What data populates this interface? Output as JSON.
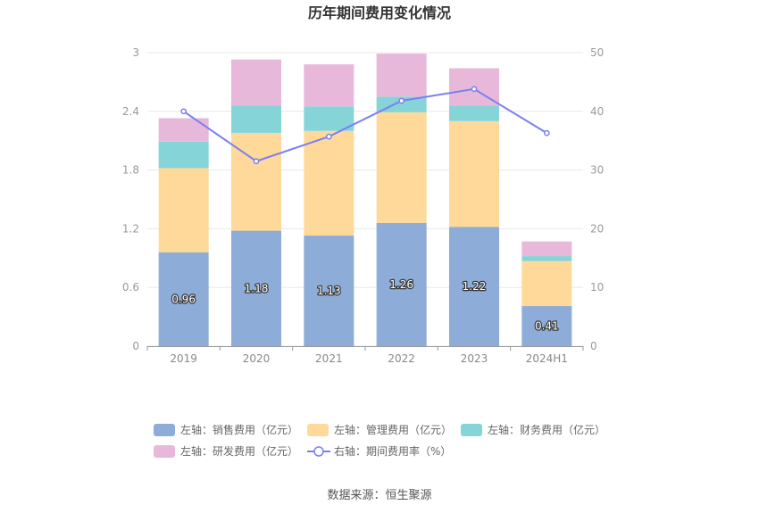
{
  "chart_data": {
    "type": "bar",
    "title": "历年期间费用变化情况",
    "categories": [
      "2019",
      "2020",
      "2021",
      "2022",
      "2023",
      "2024H1"
    ],
    "left_axis": {
      "min": 0,
      "max": 3,
      "ticks": [
        "0",
        "0.6",
        "1.2",
        "1.8",
        "2.4",
        "3"
      ]
    },
    "right_axis": {
      "min": 0,
      "max": 50,
      "ticks": [
        "0",
        "10",
        "20",
        "30",
        "40",
        "50"
      ]
    },
    "series": [
      {
        "name": "左轴：销售费用（亿元）",
        "color": "#8dacd8",
        "axis": "left",
        "stacked": true,
        "values": [
          0.96,
          1.18,
          1.13,
          1.26,
          1.22,
          0.41
        ],
        "labels": [
          "0.96",
          "1.18",
          "1.13",
          "1.26",
          "1.22",
          "0.41"
        ]
      },
      {
        "name": "左轴：管理费用（亿元）",
        "color": "#ffd999",
        "axis": "left",
        "stacked": true,
        "values": [
          0.86,
          1.0,
          1.07,
          1.13,
          1.08,
          0.46
        ]
      },
      {
        "name": "左轴：财务费用（亿元）",
        "color": "#85d4d8",
        "axis": "left",
        "stacked": true,
        "values": [
          0.27,
          0.28,
          0.25,
          0.16,
          0.16,
          0.05
        ]
      },
      {
        "name": "左轴：研发费用（亿元）",
        "color": "#e8b8da",
        "axis": "left",
        "stacked": true,
        "values": [
          0.24,
          0.47,
          0.43,
          0.44,
          0.38,
          0.15
        ]
      },
      {
        "name": "右轴：期间费用率（%）",
        "color": "#7b7ff0",
        "axis": "right",
        "type": "line",
        "values": [
          40.0,
          31.5,
          35.7,
          41.8,
          43.8,
          36.3
        ]
      }
    ],
    "legend_position": "bottom"
  },
  "source": "数据来源：恒生聚源"
}
